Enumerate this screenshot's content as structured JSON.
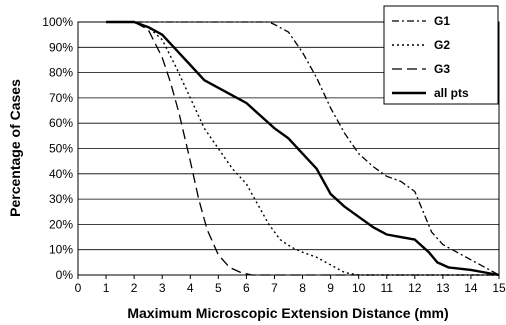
{
  "chart_data": {
    "type": "line",
    "title": "",
    "xlabel": "Maximum Microscopic Extension Distance (mm)",
    "ylabel": "Percentage of Cases",
    "xlim": [
      0,
      15
    ],
    "ylim": [
      0,
      100
    ],
    "x_ticks": [
      "0",
      "1",
      "2",
      "3",
      "4",
      "5",
      "6",
      "7",
      "8",
      "9",
      "10",
      "11",
      "12",
      "13",
      "14",
      "15"
    ],
    "y_ticks": [
      "0%",
      "10%",
      "20%",
      "30%",
      "40%",
      "50%",
      "60%",
      "70%",
      "80%",
      "90%",
      "100%"
    ],
    "grid": "horizontal",
    "legend_position": "top-right",
    "series": [
      {
        "name": "G1",
        "style": "dash-dot",
        "points": [
          [
            1,
            100
          ],
          [
            1.5,
            100
          ],
          [
            2,
            100
          ],
          [
            3,
            100
          ],
          [
            4,
            100
          ],
          [
            5,
            100
          ],
          [
            6,
            100
          ],
          [
            6.8,
            100
          ],
          [
            7,
            99
          ],
          [
            7.5,
            96
          ],
          [
            8,
            88
          ],
          [
            8.5,
            78
          ],
          [
            9,
            66
          ],
          [
            9.5,
            56
          ],
          [
            10,
            48
          ],
          [
            10.5,
            43
          ],
          [
            11,
            39
          ],
          [
            11.5,
            37
          ],
          [
            12,
            33
          ],
          [
            12.3,
            25
          ],
          [
            12.6,
            17
          ],
          [
            13,
            12
          ],
          [
            13.5,
            9
          ],
          [
            14,
            6
          ],
          [
            14.5,
            3
          ],
          [
            15,
            0
          ]
        ]
      },
      {
        "name": "G2",
        "style": "dotted",
        "points": [
          [
            1,
            100
          ],
          [
            2,
            100
          ],
          [
            2.5,
            98
          ],
          [
            3,
            93
          ],
          [
            3.5,
            82
          ],
          [
            4,
            70
          ],
          [
            4.5,
            58
          ],
          [
            5,
            50
          ],
          [
            5.5,
            42
          ],
          [
            6,
            36
          ],
          [
            6.5,
            26
          ],
          [
            6.8,
            20
          ],
          [
            7.2,
            14
          ],
          [
            7.6,
            11
          ],
          [
            8,
            9
          ],
          [
            8.5,
            7
          ],
          [
            9,
            4
          ],
          [
            9.5,
            1
          ],
          [
            10,
            0
          ],
          [
            12,
            0
          ],
          [
            15,
            0
          ]
        ]
      },
      {
        "name": "G3",
        "style": "dashed",
        "points": [
          [
            1,
            100
          ],
          [
            2,
            100
          ],
          [
            2.5,
            97
          ],
          [
            3,
            86
          ],
          [
            3.3,
            76
          ],
          [
            3.6,
            64
          ],
          [
            4,
            45
          ],
          [
            4.3,
            30
          ],
          [
            4.6,
            18
          ],
          [
            5,
            8
          ],
          [
            5.4,
            3
          ],
          [
            5.8,
            1
          ],
          [
            6.2,
            0
          ],
          [
            8,
            0
          ],
          [
            15,
            0
          ]
        ]
      },
      {
        "name": "all pts",
        "style": "solid",
        "points": [
          [
            1,
            100
          ],
          [
            1.5,
            100
          ],
          [
            2,
            100
          ],
          [
            2.5,
            98
          ],
          [
            3,
            95
          ],
          [
            3.5,
            89
          ],
          [
            4,
            83
          ],
          [
            4.5,
            77
          ],
          [
            5,
            74
          ],
          [
            5.5,
            71
          ],
          [
            6,
            68
          ],
          [
            6.5,
            63
          ],
          [
            7,
            58
          ],
          [
            7.5,
            54
          ],
          [
            8,
            48
          ],
          [
            8.5,
            42
          ],
          [
            9,
            32
          ],
          [
            9.5,
            27
          ],
          [
            10,
            23
          ],
          [
            10.5,
            19
          ],
          [
            11,
            16
          ],
          [
            11.5,
            15
          ],
          [
            12,
            14
          ],
          [
            12.5,
            9
          ],
          [
            12.8,
            5
          ],
          [
            13.2,
            3
          ],
          [
            14,
            2
          ],
          [
            14.5,
            1
          ],
          [
            15,
            0
          ]
        ]
      }
    ]
  }
}
